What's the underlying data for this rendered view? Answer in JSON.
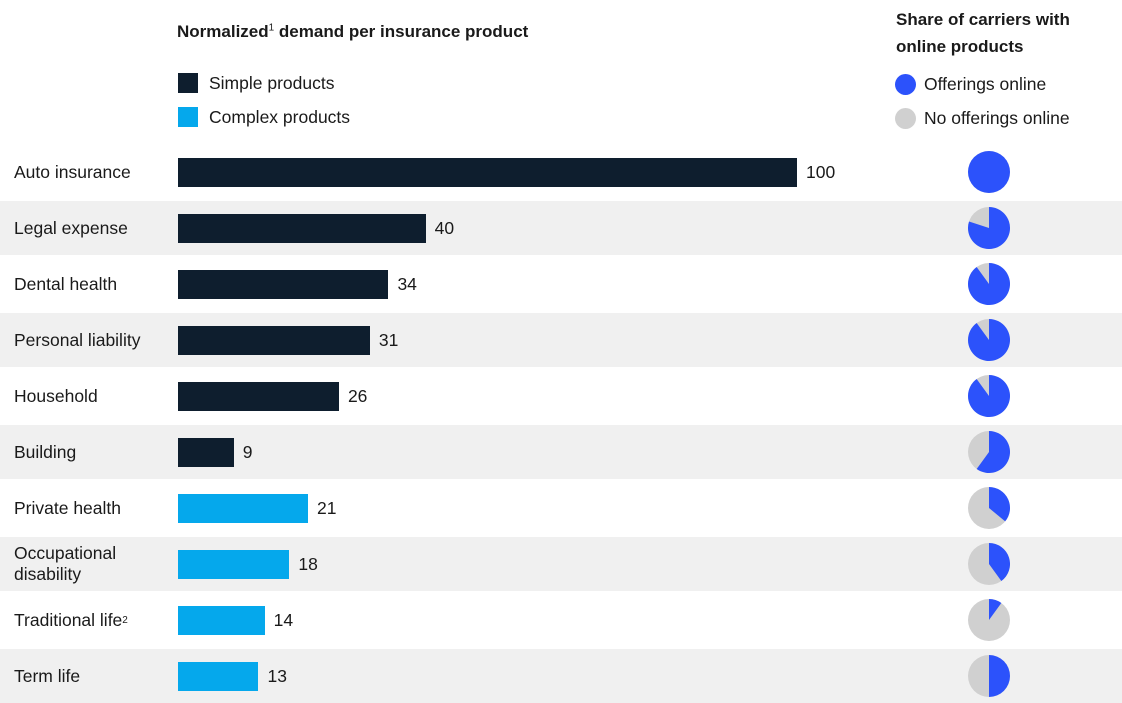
{
  "colors": {
    "simple": "#0e1e2e",
    "complex": "#05a8ec",
    "online": "#2c52fb",
    "offline": "#d0d0d0",
    "shade": "#f0f0f0"
  },
  "chart_data": {
    "type": "bar",
    "title": "Normalized",
    "title_footnote": "1",
    "title_rest": " demand per insurance product",
    "legend": {
      "simple": "Simple products",
      "complex": "Complex products"
    },
    "categories": [
      {
        "label": "Auto insurance",
        "footnote": "",
        "value": 100,
        "group": "simple",
        "online_share": 1.0
      },
      {
        "label": "Legal expense",
        "footnote": "",
        "value": 40,
        "group": "simple",
        "online_share": 0.8
      },
      {
        "label": "Dental health",
        "footnote": "",
        "value": 34,
        "group": "simple",
        "online_share": 0.9
      },
      {
        "label": "Personal liability",
        "footnote": "",
        "value": 31,
        "group": "simple",
        "online_share": 0.9
      },
      {
        "label": "Household",
        "footnote": "",
        "value": 26,
        "group": "simple",
        "online_share": 0.9
      },
      {
        "label": "Building",
        "footnote": "",
        "value": 9,
        "group": "simple",
        "online_share": 0.6
      },
      {
        "label": "Private health",
        "footnote": "",
        "value": 21,
        "group": "complex",
        "online_share": 0.36
      },
      {
        "label": "Occupational disability",
        "footnote": "",
        "value": 18,
        "group": "complex",
        "online_share": 0.4
      },
      {
        "label": "Traditional life",
        "footnote": "2",
        "value": 14,
        "group": "complex",
        "online_share": 0.1
      },
      {
        "label": "Term life",
        "footnote": "",
        "value": 13,
        "group": "complex",
        "online_share": 0.5
      }
    ],
    "xlim": [
      0,
      100
    ],
    "pie_panel": {
      "title": "Share of carriers with online products",
      "legend": {
        "online": "Offerings online",
        "offline": "No offerings online"
      }
    }
  }
}
